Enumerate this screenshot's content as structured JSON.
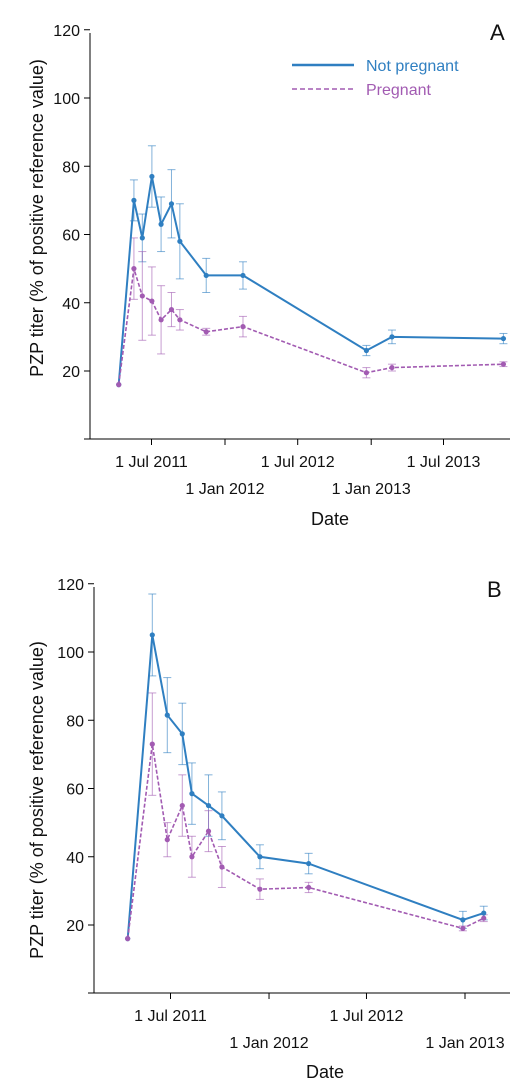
{
  "chart_data": [
    {
      "type": "line",
      "panel_label": "A",
      "xlabel": "Date",
      "ylabel": "PZP titer (% of positive reference value)",
      "ylim": [
        0,
        120
      ],
      "yticks": [
        20,
        40,
        60,
        80,
        100,
        120
      ],
      "x_ticks_upper": [
        {
          "date": "2011-07-01",
          "label": "1 Jul 2011"
        },
        {
          "date": "2012-07-01",
          "label": "1 Jul 2012"
        },
        {
          "date": "2013-07-01",
          "label": "1 Jul 2013"
        }
      ],
      "x_ticks_lower": [
        {
          "date": "2012-01-01",
          "label": "1 Jan 2012"
        },
        {
          "date": "2013-01-01",
          "label": "1 Jan 2013"
        }
      ],
      "legend": {
        "position": "top-right"
      },
      "series": [
        {
          "name": "Not pregnant",
          "color": "#2f7fc1",
          "style": "solid",
          "points": [
            {
              "x": "2011-04-10",
              "y": 16,
              "err": 0
            },
            {
              "x": "2011-05-18",
              "y": 70,
              "err": 6
            },
            {
              "x": "2011-06-08",
              "y": 59,
              "err": 7
            },
            {
              "x": "2011-07-02",
              "y": 77,
              "err": 9
            },
            {
              "x": "2011-07-25",
              "y": 63,
              "err": 8
            },
            {
              "x": "2011-08-20",
              "y": 69,
              "err": 10
            },
            {
              "x": "2011-09-10",
              "y": 58,
              "err": 11
            },
            {
              "x": "2011-11-15",
              "y": 48,
              "err": 5
            },
            {
              "x": "2012-02-15",
              "y": 48,
              "err": 4
            },
            {
              "x": "2012-12-20",
              "y": 26,
              "err": 1.5
            },
            {
              "x": "2013-02-22",
              "y": 30,
              "err": 2
            },
            {
              "x": "2013-11-28",
              "y": 29.5,
              "err": 1.5
            }
          ]
        },
        {
          "name": "Pregnant",
          "color": "#a25bb2",
          "style": "dashed",
          "points": [
            {
              "x": "2011-04-10",
              "y": 16,
              "err": 0
            },
            {
              "x": "2011-05-18",
              "y": 50,
              "err": 9
            },
            {
              "x": "2011-06-08",
              "y": 42,
              "err": 13
            },
            {
              "x": "2011-07-02",
              "y": 40.5,
              "err": 10
            },
            {
              "x": "2011-07-25",
              "y": 35,
              "err": 10
            },
            {
              "x": "2011-08-20",
              "y": 38,
              "err": 5
            },
            {
              "x": "2011-09-10",
              "y": 35,
              "err": 3
            },
            {
              "x": "2011-11-15",
              "y": 31.5,
              "err": 1
            },
            {
              "x": "2012-02-15",
              "y": 33,
              "err": 3
            },
            {
              "x": "2012-12-20",
              "y": 19.5,
              "err": 1.5
            },
            {
              "x": "2013-02-22",
              "y": 21,
              "err": 1
            },
            {
              "x": "2013-11-28",
              "y": 22,
              "err": 0.7
            }
          ]
        }
      ]
    },
    {
      "type": "line",
      "panel_label": "B",
      "xlabel": "Date",
      "ylabel": "PZP titer (% of positive reference value)",
      "ylim": [
        0,
        120
      ],
      "yticks": [
        20,
        40,
        60,
        80,
        100,
        120
      ],
      "x_ticks_upper": [
        {
          "date": "2011-07-01",
          "label": "1 Jul 2011"
        },
        {
          "date": "2012-07-01",
          "label": "1 Jul 2012"
        }
      ],
      "x_ticks_lower": [
        {
          "date": "2012-01-01",
          "label": "1 Jan 2012"
        },
        {
          "date": "2013-01-01",
          "label": "1 Jan 2013"
        }
      ],
      "series": [
        {
          "name": "Not pregnant",
          "color": "#2f7fc1",
          "style": "solid",
          "points": [
            {
              "x": "2011-04-12",
              "y": 16,
              "err": 0
            },
            {
              "x": "2011-05-28",
              "y": 105,
              "err": 12
            },
            {
              "x": "2011-06-25",
              "y": 81.5,
              "err": 11
            },
            {
              "x": "2011-07-23",
              "y": 76,
              "err": 9
            },
            {
              "x": "2011-08-10",
              "y": 58.5,
              "err": 9
            },
            {
              "x": "2011-09-10",
              "y": 55,
              "err": 9
            },
            {
              "x": "2011-10-05",
              "y": 52,
              "err": 7
            },
            {
              "x": "2011-12-15",
              "y": 40,
              "err": 3.5
            },
            {
              "x": "2012-03-15",
              "y": 38,
              "err": 3
            },
            {
              "x": "2012-12-28",
              "y": 21.5,
              "err": 2.5
            },
            {
              "x": "2013-02-05",
              "y": 23.5,
              "err": 2
            }
          ]
        },
        {
          "name": "Pregnant",
          "color": "#a25bb2",
          "style": "dashed",
          "points": [
            {
              "x": "2011-04-12",
              "y": 16,
              "err": 0
            },
            {
              "x": "2011-05-28",
              "y": 73,
              "err": 15
            },
            {
              "x": "2011-06-25",
              "y": 45,
              "err": 5
            },
            {
              "x": "2011-07-23",
              "y": 55,
              "err": 9
            },
            {
              "x": "2011-08-10",
              "y": 40,
              "err": 6
            },
            {
              "x": "2011-09-10",
              "y": 47.5,
              "err": 6
            },
            {
              "x": "2011-10-05",
              "y": 37,
              "err": 6
            },
            {
              "x": "2011-12-15",
              "y": 30.5,
              "err": 3
            },
            {
              "x": "2012-03-15",
              "y": 31,
              "err": 1.5
            },
            {
              "x": "2012-12-28",
              "y": 19,
              "err": 0.7
            },
            {
              "x": "2013-02-05",
              "y": 22,
              "err": 1
            }
          ]
        }
      ]
    }
  ]
}
